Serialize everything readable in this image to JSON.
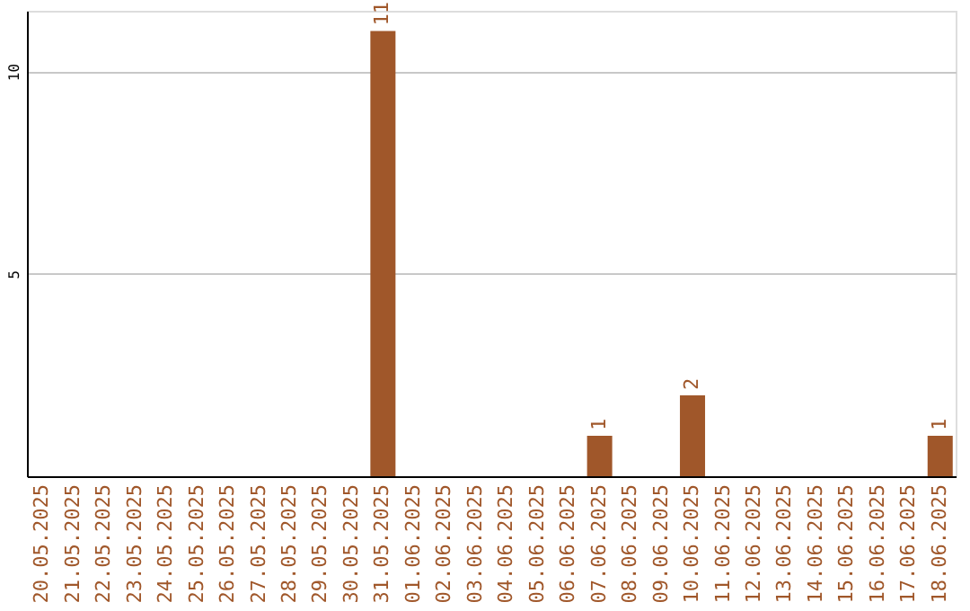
{
  "chart_data": {
    "type": "bar",
    "categories": [
      "20.05.2025",
      "21.05.2025",
      "22.05.2025",
      "23.05.2025",
      "24.05.2025",
      "25.05.2025",
      "26.05.2025",
      "27.05.2025",
      "28.05.2025",
      "29.05.2025",
      "30.05.2025",
      "31.05.2025",
      "01.06.2025",
      "02.06.2025",
      "03.06.2025",
      "04.06.2025",
      "05.06.2025",
      "06.06.2025",
      "07.06.2025",
      "08.06.2025",
      "09.06.2025",
      "10.06.2025",
      "11.06.2025",
      "12.06.2025",
      "13.06.2025",
      "14.06.2025",
      "15.06.2025",
      "16.06.2025",
      "17.06.2025",
      "18.06.2025"
    ],
    "values": [
      0,
      0,
      0,
      0,
      0,
      0,
      0,
      0,
      0,
      0,
      0,
      11,
      0,
      0,
      0,
      0,
      0,
      0,
      1,
      0,
      0,
      2,
      0,
      0,
      0,
      0,
      0,
      0,
      0,
      1
    ],
    "value_labels": [
      null,
      null,
      null,
      null,
      null,
      null,
      null,
      null,
      null,
      null,
      null,
      "11",
      null,
      null,
      null,
      null,
      null,
      null,
      "1",
      null,
      null,
      "2",
      null,
      null,
      null,
      null,
      null,
      null,
      null,
      "1"
    ],
    "color": "#a0572a",
    "ylim": [
      0,
      11.5
    ],
    "yticks": [
      5,
      10
    ],
    "grid": "y"
  }
}
